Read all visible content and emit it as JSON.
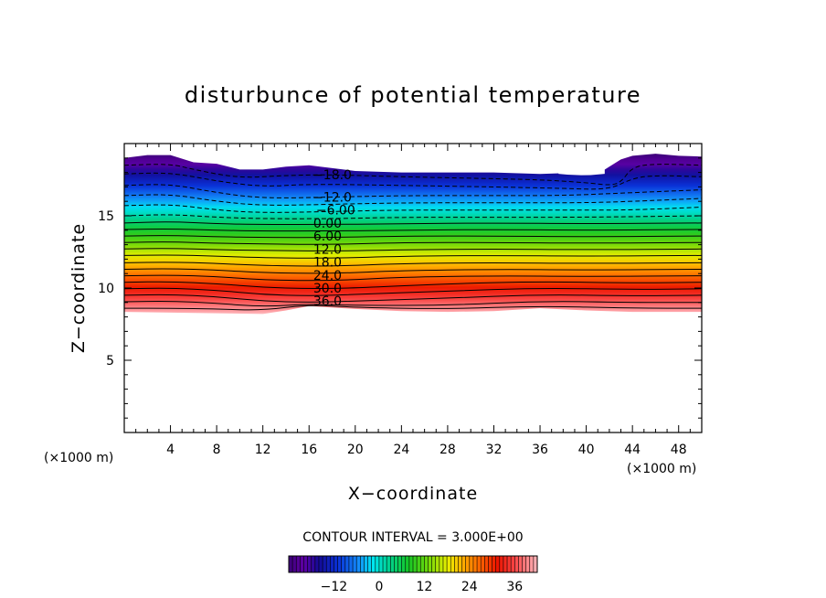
{
  "chart_data": {
    "type": "heatmap",
    "title": "disturbunce of potential temperature",
    "xlabel": "X−coordinate",
    "ylabel": "Z−coordinate",
    "x_unit_left": "(×1000 m)",
    "x_unit_right": "(×1000 m)",
    "xlim": [
      0,
      50
    ],
    "ylim": [
      0,
      20
    ],
    "x_ticks": [
      4,
      8,
      12,
      16,
      20,
      24,
      28,
      32,
      36,
      40,
      44,
      48
    ],
    "x_tick_labels": [
      "4",
      "8",
      "12",
      "16",
      "20",
      "24",
      "28",
      "32",
      "36",
      "40",
      "44",
      "48"
    ],
    "y_ticks": [
      5,
      10,
      15
    ],
    "y_tick_labels": [
      "5",
      "10",
      "15"
    ],
    "contour_interval_text": "CONTOUR INTERVAL = 3.000E+00",
    "contour_interval": 3,
    "value_range": [
      -24,
      42
    ],
    "contour_labels": [
      {
        "text": "−18.0",
        "value": -18,
        "x": 18,
        "y": 17.85
      },
      {
        "text": "−12.0",
        "value": -12,
        "x": 18,
        "y": 16.3
      },
      {
        "text": "−6.00",
        "value": -6,
        "x": 18.3,
        "y": 15.4
      },
      {
        "text": "0.00",
        "value": 0,
        "x": 17.6,
        "y": 14.5
      },
      {
        "text": "6.00",
        "value": 6,
        "x": 17.6,
        "y": 13.6
      },
      {
        "text": "12.0",
        "value": 12,
        "x": 17.6,
        "y": 12.7
      },
      {
        "text": "18.0",
        "value": 18,
        "x": 17.6,
        "y": 11.8
      },
      {
        "text": "24.0",
        "value": 24,
        "x": 17.6,
        "y": 10.9
      },
      {
        "text": "30.0",
        "value": 30,
        "x": 17.6,
        "y": 10.0
      },
      {
        "text": "36.0",
        "value": 36,
        "x": 17.6,
        "y": 9.1
      }
    ],
    "top_boundary": [
      [
        0,
        19.0
      ],
      [
        2,
        19.2
      ],
      [
        4,
        19.2
      ],
      [
        6,
        18.7
      ],
      [
        8,
        18.6
      ],
      [
        10,
        18.2
      ],
      [
        12,
        18.2
      ],
      [
        14,
        18.4
      ],
      [
        16,
        18.5
      ],
      [
        20,
        18.1
      ],
      [
        24,
        18.0
      ],
      [
        28,
        18.0
      ],
      [
        32,
        18.0
      ],
      [
        36,
        17.9
      ],
      [
        38,
        17.95
      ],
      [
        41,
        17.9
      ],
      [
        42,
        18.4
      ],
      [
        43,
        18.9
      ],
      [
        44,
        19.15
      ],
      [
        46,
        19.3
      ],
      [
        48,
        19.15
      ],
      [
        50,
        19.1
      ]
    ],
    "white_gap": {
      "x_range": [
        37.6,
        41.6
      ],
      "z_bottom": 17.9
    },
    "bottom_boundary": [
      [
        0,
        8.35
      ],
      [
        4,
        8.3
      ],
      [
        8,
        8.25
      ],
      [
        12,
        8.2
      ],
      [
        14,
        8.45
      ],
      [
        16,
        8.75
      ],
      [
        20,
        8.55
      ],
      [
        24,
        8.4
      ],
      [
        28,
        8.35
      ],
      [
        32,
        8.4
      ],
      [
        36,
        8.6
      ],
      [
        40,
        8.45
      ],
      [
        44,
        8.35
      ],
      [
        50,
        8.35
      ]
    ],
    "level_lines": [
      {
        "value": -18,
        "pts": [
          [
            0,
            18.5
          ],
          [
            4,
            18.6
          ],
          [
            6,
            18.2
          ],
          [
            10,
            17.6
          ],
          [
            14,
            17.8
          ],
          [
            18,
            17.85
          ],
          [
            24,
            17.7
          ],
          [
            30,
            17.6
          ],
          [
            36,
            17.5
          ],
          [
            40,
            17.3
          ],
          [
            42,
            17.1
          ],
          [
            43,
            17.3
          ],
          [
            44,
            18.4
          ],
          [
            46,
            18.6
          ],
          [
            50,
            18.5
          ]
        ]
      },
      {
        "value": -15,
        "pts": [
          [
            0,
            17.9
          ],
          [
            4,
            18.0
          ],
          [
            8,
            17.4
          ],
          [
            12,
            17.0
          ],
          [
            16,
            17.2
          ],
          [
            24,
            17.1
          ],
          [
            32,
            17.0
          ],
          [
            38,
            16.9
          ],
          [
            42,
            16.8
          ],
          [
            44,
            17.6
          ],
          [
            46,
            17.8
          ],
          [
            50,
            17.7
          ]
        ]
      },
      {
        "value": -12,
        "pts": [
          [
            0,
            17.1
          ],
          [
            4,
            17.2
          ],
          [
            8,
            16.6
          ],
          [
            12,
            16.2
          ],
          [
            18,
            16.3
          ],
          [
            24,
            16.4
          ],
          [
            32,
            16.4
          ],
          [
            38,
            16.4
          ],
          [
            44,
            16.6
          ],
          [
            50,
            16.8
          ]
        ]
      },
      {
        "value": -9,
        "pts": [
          [
            0,
            16.4
          ],
          [
            4,
            16.5
          ],
          [
            8,
            16.0
          ],
          [
            12,
            15.7
          ],
          [
            18,
            15.8
          ],
          [
            24,
            15.9
          ],
          [
            32,
            15.9
          ],
          [
            40,
            15.9
          ],
          [
            44,
            16.0
          ],
          [
            50,
            16.2
          ]
        ]
      },
      {
        "value": -6,
        "pts": [
          [
            0,
            15.7
          ],
          [
            4,
            15.8
          ],
          [
            8,
            15.4
          ],
          [
            12,
            15.2
          ],
          [
            18,
            15.3
          ],
          [
            24,
            15.4
          ],
          [
            32,
            15.4
          ],
          [
            40,
            15.4
          ],
          [
            44,
            15.4
          ],
          [
            50,
            15.6
          ]
        ]
      },
      {
        "value": -3,
        "pts": [
          [
            0,
            15.0
          ],
          [
            4,
            15.1
          ],
          [
            8,
            14.9
          ],
          [
            12,
            14.8
          ],
          [
            18,
            14.8
          ],
          [
            24,
            14.9
          ],
          [
            32,
            14.9
          ],
          [
            40,
            14.9
          ],
          [
            50,
            15.0
          ]
        ]
      },
      {
        "value": 0,
        "pts": [
          [
            0,
            14.5
          ],
          [
            4,
            14.6
          ],
          [
            8,
            14.45
          ],
          [
            12,
            14.4
          ],
          [
            18,
            14.4
          ],
          [
            24,
            14.45
          ],
          [
            32,
            14.5
          ],
          [
            40,
            14.45
          ],
          [
            50,
            14.5
          ]
        ]
      },
      {
        "value": 3,
        "pts": [
          [
            0,
            14.05
          ],
          [
            4,
            14.1
          ],
          [
            8,
            14.0
          ],
          [
            12,
            13.95
          ],
          [
            18,
            13.95
          ],
          [
            24,
            14.0
          ],
          [
            32,
            14.05
          ],
          [
            40,
            14.0
          ],
          [
            50,
            14.05
          ]
        ]
      },
      {
        "value": 6,
        "pts": [
          [
            0,
            13.6
          ],
          [
            4,
            13.65
          ],
          [
            8,
            13.55
          ],
          [
            12,
            13.5
          ],
          [
            18,
            13.5
          ],
          [
            24,
            13.6
          ],
          [
            32,
            13.6
          ],
          [
            40,
            13.55
          ],
          [
            50,
            13.6
          ]
        ]
      },
      {
        "value": 9,
        "pts": [
          [
            0,
            13.15
          ],
          [
            4,
            13.2
          ],
          [
            8,
            13.1
          ],
          [
            12,
            13.05
          ],
          [
            18,
            13.0
          ],
          [
            24,
            13.15
          ],
          [
            32,
            13.15
          ],
          [
            40,
            13.1
          ],
          [
            50,
            13.15
          ]
        ]
      },
      {
        "value": 12,
        "pts": [
          [
            0,
            12.7
          ],
          [
            4,
            12.75
          ],
          [
            8,
            12.65
          ],
          [
            12,
            12.6
          ],
          [
            18,
            12.55
          ],
          [
            24,
            12.65
          ],
          [
            32,
            12.7
          ],
          [
            40,
            12.65
          ],
          [
            50,
            12.7
          ]
        ]
      },
      {
        "value": 15,
        "pts": [
          [
            0,
            12.25
          ],
          [
            4,
            12.3
          ],
          [
            8,
            12.2
          ],
          [
            12,
            12.1
          ],
          [
            18,
            12.05
          ],
          [
            24,
            12.2
          ],
          [
            32,
            12.25
          ],
          [
            40,
            12.2
          ],
          [
            50,
            12.25
          ]
        ]
      },
      {
        "value": 18,
        "pts": [
          [
            0,
            11.75
          ],
          [
            4,
            11.8
          ],
          [
            8,
            11.7
          ],
          [
            12,
            11.55
          ],
          [
            18,
            11.5
          ],
          [
            24,
            11.7
          ],
          [
            32,
            11.75
          ],
          [
            40,
            11.7
          ],
          [
            50,
            11.75
          ]
        ]
      },
      {
        "value": 21,
        "pts": [
          [
            0,
            11.3
          ],
          [
            4,
            11.35
          ],
          [
            8,
            11.25
          ],
          [
            12,
            11.05
          ],
          [
            18,
            11.0
          ],
          [
            24,
            11.2
          ],
          [
            32,
            11.3
          ],
          [
            40,
            11.25
          ],
          [
            50,
            11.3
          ]
        ]
      },
      {
        "value": 24,
        "pts": [
          [
            0,
            10.85
          ],
          [
            4,
            10.9
          ],
          [
            8,
            10.8
          ],
          [
            12,
            10.55
          ],
          [
            18,
            10.5
          ],
          [
            24,
            10.75
          ],
          [
            32,
            10.85
          ],
          [
            40,
            10.8
          ],
          [
            50,
            10.85
          ]
        ]
      },
      {
        "value": 27,
        "pts": [
          [
            0,
            10.4
          ],
          [
            4,
            10.45
          ],
          [
            8,
            10.3
          ],
          [
            12,
            10.05
          ],
          [
            16,
            9.95
          ],
          [
            20,
            10.0
          ],
          [
            28,
            10.3
          ],
          [
            36,
            10.45
          ],
          [
            44,
            10.35
          ],
          [
            50,
            10.4
          ]
        ]
      },
      {
        "value": 30,
        "pts": [
          [
            0,
            9.95
          ],
          [
            4,
            10.0
          ],
          [
            8,
            9.85
          ],
          [
            12,
            9.55
          ],
          [
            16,
            9.45
          ],
          [
            20,
            9.55
          ],
          [
            28,
            9.8
          ],
          [
            36,
            10.0
          ],
          [
            44,
            9.9
          ],
          [
            50,
            9.95
          ]
        ]
      },
      {
        "value": 33,
        "pts": [
          [
            0,
            9.5
          ],
          [
            4,
            9.55
          ],
          [
            8,
            9.4
          ],
          [
            12,
            9.1
          ],
          [
            16,
            9.0
          ],
          [
            20,
            9.1
          ],
          [
            28,
            9.3
          ],
          [
            36,
            9.55
          ],
          [
            44,
            9.45
          ],
          [
            50,
            9.5
          ]
        ]
      },
      {
        "value": 36,
        "pts": [
          [
            0,
            9.05
          ],
          [
            4,
            9.1
          ],
          [
            8,
            8.95
          ],
          [
            12,
            8.7
          ],
          [
            16,
            8.9
          ],
          [
            20,
            8.8
          ],
          [
            28,
            8.8
          ],
          [
            36,
            9.1
          ],
          [
            44,
            9.0
          ],
          [
            50,
            9.0
          ]
        ]
      },
      {
        "value": 39,
        "pts": [
          [
            0,
            8.6
          ],
          [
            4,
            8.6
          ],
          [
            8,
            8.55
          ],
          [
            12,
            8.45
          ],
          [
            16,
            8.85
          ],
          [
            20,
            8.65
          ],
          [
            28,
            8.55
          ],
          [
            36,
            8.75
          ],
          [
            44,
            8.6
          ],
          [
            50,
            8.6
          ]
        ]
      }
    ],
    "colorbar": {
      "ticks": [
        -12,
        0,
        12,
        24,
        36
      ],
      "tick_labels": [
        "−12",
        "0",
        "12",
        "24",
        "36"
      ],
      "range": [
        -24,
        42
      ]
    }
  }
}
